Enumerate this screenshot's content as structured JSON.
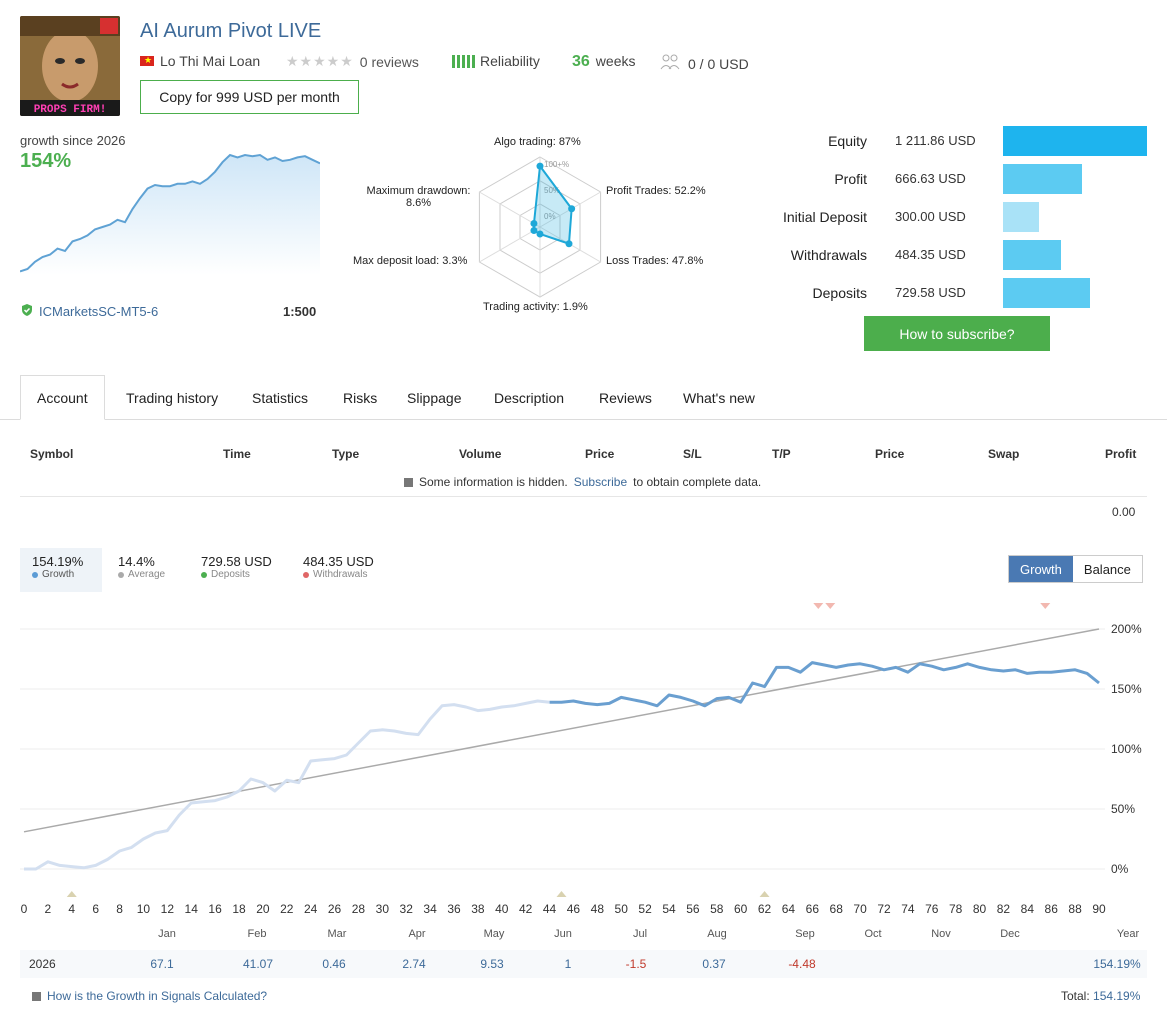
{
  "header": {
    "title": "AI Aurum Pivot LIVE",
    "avatar_text": "PROPS FIRM!",
    "author": "Lo Thi Mai Loan",
    "reviews": "0 reviews",
    "reliability": "Reliability",
    "weeks_num": "36",
    "weeks_label": "weeks",
    "subscribers": "0 / 0 USD",
    "copy_button": "Copy for 999 USD per month"
  },
  "summary": {
    "growth_label": "growth since 2026",
    "growth_value": "154%",
    "broker": "ICMarketsSC-MT5-6",
    "leverage": "1:500",
    "sparkline": [
      3,
      5,
      11,
      15,
      17,
      22,
      20,
      28,
      30,
      33,
      38,
      40,
      42,
      46,
      44,
      55,
      64,
      72,
      75,
      74,
      74,
      76,
      76,
      78,
      76,
      80,
      86,
      94,
      100,
      98,
      100,
      99,
      100,
      96,
      98,
      95,
      96,
      98,
      99,
      96,
      93
    ]
  },
  "radar": {
    "ring_labels": [
      "100+%",
      "50%",
      "0%"
    ],
    "algo": "Algo trading: 87%",
    "profit_trades": "Profit Trades: 52.2%",
    "loss_trades": "Loss Trades: 47.8%",
    "activity": "Trading activity: 1.9%",
    "deposit_load": "Max deposit load: 3.3%",
    "drawdown_1": "Maximum drawdown:",
    "drawdown_2": "8.6%",
    "values": [
      87,
      52.2,
      47.8,
      1.9,
      3.3,
      8.6
    ]
  },
  "balance": {
    "rows": [
      {
        "label": "Equity",
        "value": "1 211.86 USD",
        "amount": 1211.86,
        "color": "#1eb4ee"
      },
      {
        "label": "Profit",
        "value": "666.63 USD",
        "amount": 666.63,
        "color": "#5ccbf2"
      },
      {
        "label": "Initial Deposit",
        "value": "300.00 USD",
        "amount": 300.0,
        "color": "#a9e2f7"
      },
      {
        "label": "Withdrawals",
        "value": "484.35 USD",
        "amount": 484.35,
        "color": "#5ccbf2"
      },
      {
        "label": "Deposits",
        "value": "729.58 USD",
        "amount": 729.58,
        "color": "#5ccbf2"
      }
    ],
    "subscribe_button": "How to subscribe?"
  },
  "tabs": [
    "Account",
    "Trading history",
    "Statistics",
    "Risks",
    "Slippage",
    "Description",
    "Reviews",
    "What's new"
  ],
  "table": {
    "headers": [
      "Symbol",
      "Time",
      "Type",
      "Volume",
      "Price",
      "S/L",
      "T/P",
      "Price",
      "Swap",
      "Profit"
    ],
    "hidden_note_1": "Some information is hidden.",
    "hidden_link": "Subscribe",
    "hidden_note_2": "to obtain complete data.",
    "total_profit": "0.00"
  },
  "stats": {
    "growth_val": "154.19%",
    "growth_label": "Growth",
    "average_val": "14.4%",
    "average_label": "Average",
    "deposits_val": "729.58 USD",
    "deposits_label": "Deposits",
    "withdrawals_val": "484.35 USD",
    "withdrawals_label": "Withdrawals",
    "toggle_growth": "Growth",
    "toggle_balance": "Balance"
  },
  "chart_data": {
    "type": "line",
    "x_ticks": [
      "0",
      "2",
      "4",
      "6",
      "8",
      "10",
      "12",
      "14",
      "16",
      "18",
      "20",
      "22",
      "24",
      "26",
      "28",
      "30",
      "32",
      "34",
      "36",
      "38",
      "40",
      "42",
      "44",
      "46",
      "48",
      "50",
      "52",
      "54",
      "56",
      "58",
      "60",
      "62",
      "64",
      "66",
      "68",
      "70",
      "72",
      "74",
      "76",
      "78",
      "80",
      "82",
      "84",
      "86",
      "88",
      "90"
    ],
    "y_ticks": [
      "200%",
      "150%",
      "100%",
      "50%",
      "0%"
    ],
    "ylim": [
      0,
      200
    ],
    "xlim": [
      0,
      90
    ],
    "series": [
      {
        "x": [
          0,
          1,
          2,
          3,
          4,
          5,
          6,
          7,
          8,
          9,
          10,
          11,
          12,
          13,
          14,
          15,
          16,
          17,
          18,
          19,
          20,
          21,
          22,
          23,
          24,
          25,
          26,
          27,
          28,
          29,
          30,
          31,
          32,
          33,
          34,
          35,
          36,
          37,
          38,
          39,
          40,
          41,
          42,
          43,
          44,
          45,
          46,
          47,
          48,
          49,
          50,
          51,
          52,
          53,
          54,
          55,
          56,
          57,
          58,
          59,
          60,
          61,
          62,
          63,
          64,
          65,
          66,
          67,
          68,
          69,
          70,
          71,
          72,
          73,
          74,
          75,
          76,
          77,
          78,
          79,
          80,
          81,
          82,
          83,
          84,
          85,
          86,
          87,
          88,
          89,
          90
        ],
        "y": [
          0,
          0,
          6,
          3,
          2,
          1,
          3,
          8,
          15,
          18,
          25,
          30,
          32,
          45,
          55,
          56,
          57,
          60,
          65,
          75,
          72,
          65,
          74,
          72,
          90,
          91,
          92,
          95,
          105,
          115,
          116,
          115,
          113,
          112,
          125,
          136,
          137,
          135,
          132,
          133,
          135,
          136,
          138,
          140,
          139,
          139,
          140,
          138,
          137,
          138,
          143,
          141,
          139,
          136,
          145,
          143,
          140,
          136,
          142,
          143,
          139,
          155,
          152,
          168,
          168,
          164,
          172,
          170,
          168,
          170,
          171,
          169,
          166,
          168,
          164,
          171,
          169,
          166,
          168,
          171,
          168,
          166,
          165,
          166,
          163,
          164,
          164,
          165,
          166,
          163,
          155
        ]
      },
      {
        "x": [
          0,
          90
        ],
        "y": [
          31,
          200
        ]
      }
    ],
    "deposit_markers_x": [
      4,
      45,
      62
    ],
    "withdrawal_markers_x": [
      66.5,
      67.5,
      85.5
    ]
  },
  "months": [
    "Jan",
    "Feb",
    "Mar",
    "Apr",
    "May",
    "Jun",
    "Jul",
    "Aug",
    "Sep",
    "Oct",
    "Nov",
    "Dec",
    "Year"
  ],
  "year_row": {
    "year": "2026",
    "values": [
      "67.1",
      "41.07",
      "0.46",
      "2.74",
      "9.53",
      "1",
      "-1.5",
      "0.37",
      "-4.48",
      "",
      "",
      "",
      "154.19%"
    ]
  },
  "footer": {
    "help_link": "How is the Growth in Signals Calculated?",
    "total_label": "Total:",
    "total_value": "154.19%"
  }
}
